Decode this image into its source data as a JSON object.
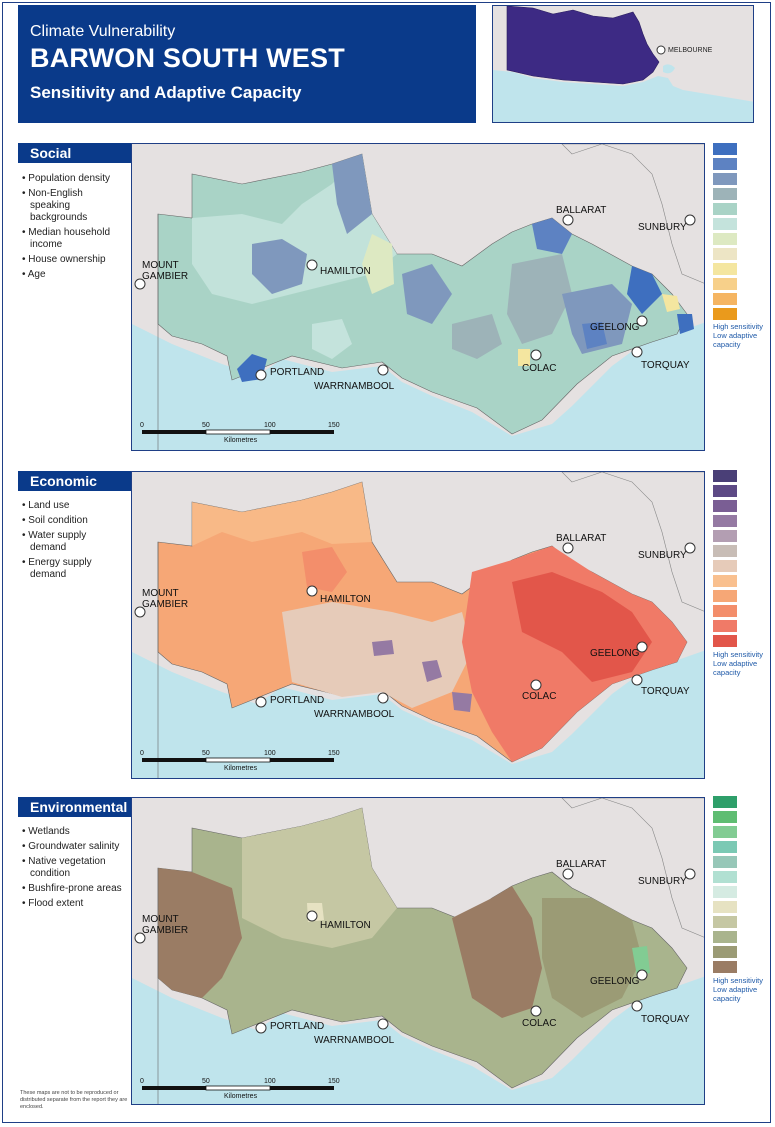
{
  "header": {
    "supertitle": "Climate Vulnerability",
    "title": "BARWON SOUTH WEST",
    "subtitle": "Sensitivity and Adaptive Capacity"
  },
  "inset": {
    "city_label": "MELBOURNE"
  },
  "cities": {
    "ballarat": "BALLARAT",
    "sunbury": "SUNBURY",
    "mount_gambier_1": "MOUNT",
    "mount_gambier_2": "GAMBIER",
    "hamilton": "HAMILTON",
    "geelong": "GEELONG",
    "colac": "COLAC",
    "torquay": "TORQUAY",
    "portland": "PORTLAND",
    "warrnambool": "WARRNAMBOOL"
  },
  "scale": {
    "ticks": [
      "0",
      "50",
      "100",
      "150"
    ],
    "unit": "Kilometres"
  },
  "legend_text": {
    "line1": "High sensitivity",
    "line2": "Low adaptive",
    "line3": "capacity"
  },
  "sections": [
    {
      "name": "Social",
      "indicators": [
        "Population density",
        "Non-English speaking backgrounds",
        "Median household income",
        "House ownership",
        "Age"
      ],
      "legend_colors": [
        "#3e6fbf",
        "#5d82c2",
        "#7f98bd",
        "#9db3b8",
        "#a9d3c6",
        "#c4e3dc",
        "#dde9c2",
        "#ede5c5",
        "#f4e6a0",
        "#f7d08a",
        "#f5b562",
        "#ea9a1c"
      ]
    },
    {
      "name": "Economic",
      "indicators": [
        "Land use",
        "Soil condition",
        "Water supply demand",
        "Energy supply demand"
      ],
      "legend_colors": [
        "#4a3f77",
        "#5d4a85",
        "#7a5e94",
        "#957aa3",
        "#b39eb2",
        "#c8bdb6",
        "#e6cbb9",
        "#f9c08f",
        "#f6a776",
        "#f38e6b",
        "#f07a67",
        "#e2564a"
      ]
    },
    {
      "name": "Environmental",
      "indicators": [
        "Wetlands",
        "Groundwater salinity",
        "Native vegetation condition",
        "Bushfire-prone areas",
        "Flood extent"
      ],
      "legend_colors": [
        "#2e9f6a",
        "#5fbd72",
        "#82cc93",
        "#7bc9b4",
        "#97c7b8",
        "#b1e0d2",
        "#d5ebe2",
        "#e6e2c2",
        "#c5c7a3",
        "#a9b48d",
        "#9b9b75",
        "#9a7c64"
      ]
    }
  ],
  "footnote": "These maps are not to be reproduced or distributed separate from the report they are enclosed."
}
